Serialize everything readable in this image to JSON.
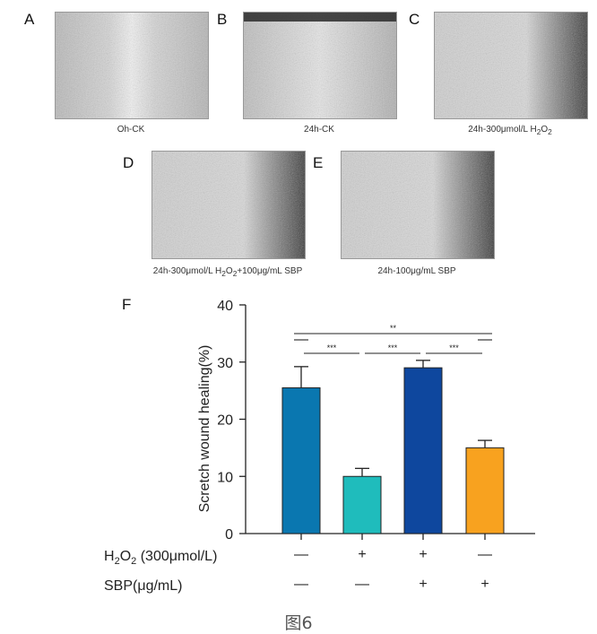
{
  "panels": [
    {
      "letter": "A",
      "caption": "Oh-CK"
    },
    {
      "letter": "B",
      "caption": "24h-CK"
    },
    {
      "letter": "C",
      "caption_parts": [
        "24h-300μmol/L H",
        "2",
        "O",
        "2",
        ""
      ]
    },
    {
      "letter": "D",
      "caption_parts": [
        "24h-300μmol/L H",
        "2",
        "O",
        "2",
        "+100μg/mL SBP"
      ]
    },
    {
      "letter": "E",
      "caption": "24h-100μg/mL SBP"
    }
  ],
  "chart_letter": "F",
  "figure_caption": "图6",
  "treatment_rows": [
    {
      "label_parts": [
        "H",
        "2",
        "O",
        "2",
        " (300μmol/L)"
      ],
      "marks": [
        "—",
        "+",
        "+",
        "—"
      ]
    },
    {
      "label": "SBP(μg/mL)",
      "marks": [
        "—",
        "—",
        "+",
        "+"
      ]
    }
  ],
  "chart_data": {
    "type": "bar",
    "ylabel": "Scretch wound healing(%)",
    "ylim": [
      0,
      40
    ],
    "yticks": [
      "0",
      "10",
      "20",
      "30",
      "40"
    ],
    "values": [
      25.5,
      10,
      29,
      15
    ],
    "errors": [
      3.7,
      1.4,
      1.3,
      1.3
    ],
    "colors": [
      "#0a77b0",
      "#1fbcbc",
      "#0e479e",
      "#f8a21f"
    ],
    "significance": [
      {
        "from": 0,
        "to": 3,
        "label": "**"
      },
      {
        "from": 0,
        "to": 1,
        "label": "***"
      },
      {
        "from": 1,
        "to": 2,
        "label": "***"
      },
      {
        "from": 2,
        "to": 3,
        "label": "***"
      }
    ]
  }
}
